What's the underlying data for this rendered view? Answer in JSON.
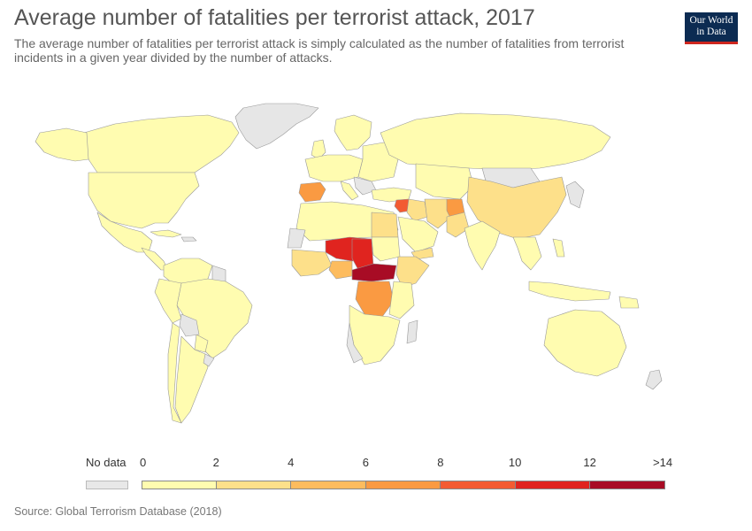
{
  "header": {
    "title": "Average number of fatalities per terrorist attack, 2017",
    "subtitle": "The average number of fatalities per terrorist attack is simply calculated as the number of fatalities from terrorist incidents in a given year divided by the number of attacks."
  },
  "logo": {
    "line1": "Our World",
    "line2": "in Data"
  },
  "legend": {
    "no_data_label": "No data",
    "no_data_color": "#e8e8e8",
    "tick_labels": [
      "0",
      "2",
      "4",
      "6",
      "8",
      "10",
      "12",
      ">14"
    ],
    "bin_colors": [
      "#fffcb0",
      "#fde08a",
      "#fdbc5e",
      "#fa9a42",
      "#f35b32",
      "#e0241f",
      "#a80c25"
    ]
  },
  "source": "Source: Global Terrorism Database (2018)",
  "map_colors": {
    "ocean": "#ffffff",
    "border": "#999999",
    "nodata": "#e6e6e6"
  }
}
